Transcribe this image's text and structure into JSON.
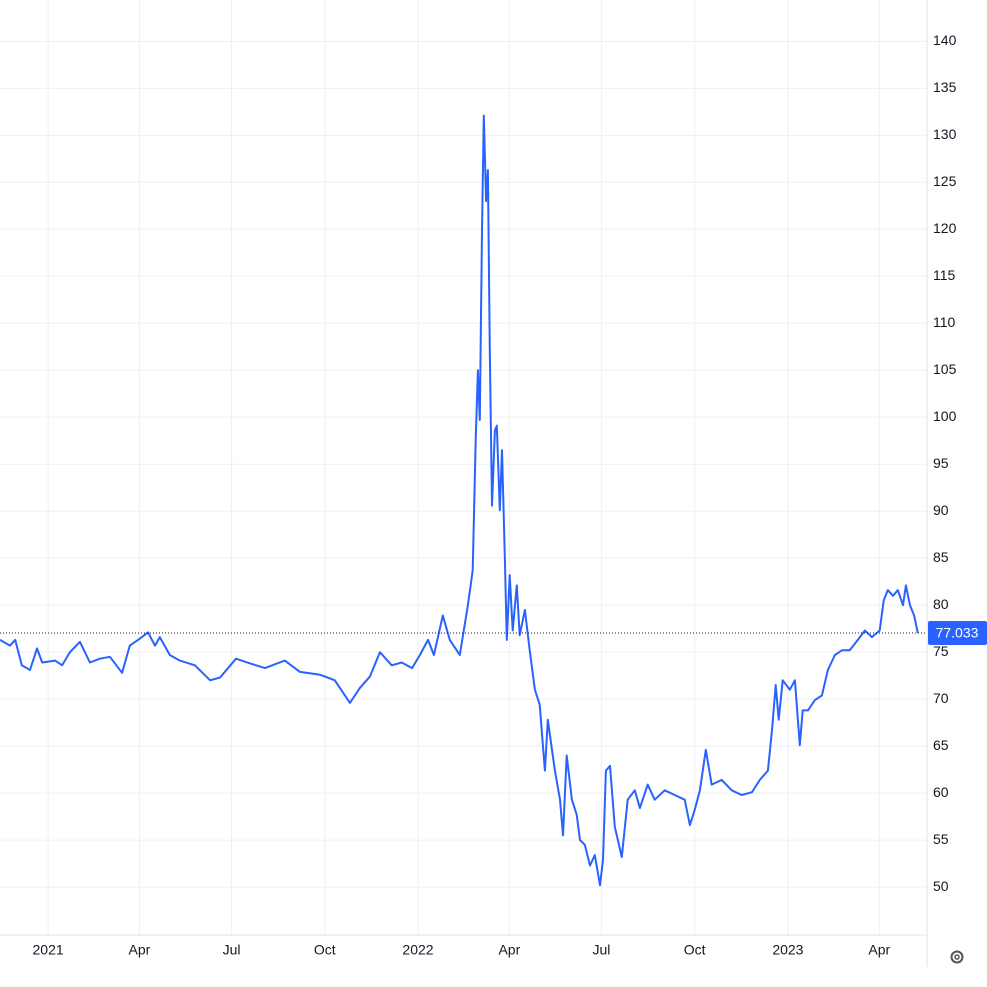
{
  "chart_data": {
    "type": "line",
    "x": [
      2020.87,
      2020.897,
      2020.911,
      2020.929,
      2020.951,
      2020.97,
      2020.984,
      2021.019,
      2021.038,
      2021.059,
      2021.086,
      2021.113,
      2021.14,
      2021.167,
      2021.2,
      2021.221,
      2021.243,
      2021.27,
      2021.289,
      2021.302,
      2021.329,
      2021.356,
      2021.397,
      2021.438,
      2021.465,
      2021.508,
      2021.546,
      2021.586,
      2021.64,
      2021.681,
      2021.735,
      2021.775,
      2021.816,
      2021.843,
      2021.87,
      2021.897,
      2021.929,
      2021.956,
      2021.984,
      2022.005,
      2022.027,
      2022.043,
      2022.067,
      2022.086,
      2022.113,
      2022.135,
      2022.148,
      2022.156,
      2022.162,
      2022.167,
      2022.173,
      2022.178,
      2022.184,
      2022.189,
      2022.194,
      2022.2,
      2022.208,
      2022.213,
      2022.221,
      2022.227,
      2022.235,
      2022.24,
      2022.248,
      2022.256,
      2022.267,
      2022.275,
      2022.289,
      2022.302,
      2022.316,
      2022.329,
      2022.343,
      2022.351,
      2022.37,
      2022.384,
      2022.392,
      2022.402,
      2022.416,
      2022.429,
      2022.438,
      2022.451,
      2022.465,
      2022.478,
      2022.492,
      2022.5,
      2022.508,
      2022.519,
      2022.532,
      2022.551,
      2022.567,
      2022.586,
      2022.6,
      2022.621,
      2022.64,
      2022.667,
      2022.694,
      2022.721,
      2022.735,
      2022.748,
      2022.762,
      2022.778,
      2022.794,
      2022.821,
      2022.848,
      2022.875,
      2022.903,
      2022.924,
      2022.946,
      2022.957,
      2022.967,
      2022.975,
      2022.986,
      2023.005,
      2023.019,
      2023.032,
      2023.04,
      2023.054,
      2023.073,
      2023.092,
      2023.108,
      2023.127,
      2023.146,
      2023.167,
      2023.189,
      2023.208,
      2023.227,
      2023.248,
      2023.259,
      2023.27,
      2023.284,
      2023.297,
      2023.311,
      2023.319,
      2023.33,
      2023.341,
      2023.351
    ],
    "series": [
      {
        "color": "#2962ff",
        "values": [
          76.3,
          75.7,
          76.3,
          73.6,
          73.1,
          75.4,
          73.9,
          74.1,
          73.6,
          75.0,
          76.1,
          73.9,
          74.3,
          74.5,
          72.8,
          75.7,
          76.3,
          77.1,
          75.7,
          76.6,
          74.7,
          74.1,
          73.6,
          72.0,
          72.3,
          74.3,
          73.8,
          73.3,
          74.1,
          72.9,
          72.6,
          72.0,
          69.6,
          71.2,
          72.4,
          75.0,
          73.6,
          73.9,
          73.3,
          74.7,
          76.3,
          74.7,
          78.9,
          76.3,
          74.7,
          80.0,
          83.7,
          97.6,
          105.0,
          99.7,
          119.9,
          132.1,
          123.0,
          126.3,
          107.1,
          90.6,
          98.6,
          99.1,
          90.1,
          96.5,
          84.8,
          76.3,
          83.2,
          77.3,
          82.1,
          76.8,
          79.5,
          75.2,
          71.0,
          69.4,
          62.4,
          67.8,
          62.4,
          59.3,
          55.5,
          64.0,
          59.3,
          57.7,
          55.0,
          54.5,
          52.3,
          53.4,
          50.2,
          52.9,
          62.4,
          62.9,
          56.4,
          53.2,
          59.3,
          60.3,
          58.4,
          60.9,
          59.3,
          60.3,
          59.8,
          59.3,
          56.6,
          58.2,
          60.3,
          64.6,
          60.9,
          61.4,
          60.3,
          59.8,
          60.1,
          61.4,
          62.4,
          66.7,
          71.5,
          67.8,
          72.0,
          71.0,
          72.0,
          65.1,
          68.8,
          68.8,
          69.9,
          70.4,
          73.1,
          74.7,
          75.2,
          75.2,
          76.3,
          77.3,
          76.6,
          77.3,
          80.5,
          81.6,
          81.0,
          81.6,
          80.0,
          82.1,
          80.0,
          78.9,
          77.033
        ]
      }
    ],
    "last_value": 77.033,
    "xlim": [
      2020.87,
      2023.376
    ],
    "xticks": [
      {
        "value": 2021,
        "label": "2021"
      },
      {
        "value": 2021.247,
        "label": "Apr"
      },
      {
        "value": 2021.496,
        "label": "Jul"
      },
      {
        "value": 2021.748,
        "label": "Oct"
      },
      {
        "value": 2022,
        "label": "2022"
      },
      {
        "value": 2022.247,
        "label": "Apr"
      },
      {
        "value": 2022.496,
        "label": "Jul"
      },
      {
        "value": 2022.748,
        "label": "Oct"
      },
      {
        "value": 2023,
        "label": "2023"
      },
      {
        "value": 2023.247,
        "label": "Apr"
      }
    ],
    "ylim": [
      44.9,
      144.4
    ],
    "yticks": [
      50,
      55,
      60,
      65,
      70,
      75,
      80,
      85,
      90,
      95,
      100,
      105,
      110,
      115,
      120,
      125,
      130,
      135,
      140
    ],
    "grid": true
  }
}
